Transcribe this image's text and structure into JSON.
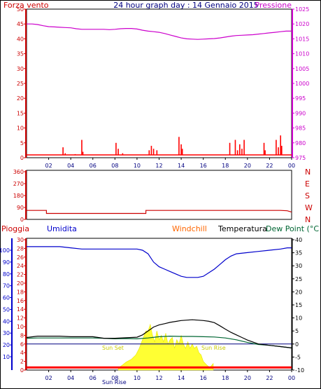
{
  "page": {
    "title": "24 hour graph day : 14 Gennaio 2015"
  },
  "x_ticks": [
    "02",
    "04",
    "06",
    "08",
    "10",
    "12",
    "14",
    "16",
    "18",
    "20",
    "22",
    "00"
  ],
  "chart_data": [
    {
      "type": "line",
      "title": "24 hour graph day : 14 Gennaio 2015",
      "left_axis_label": "Forza vento",
      "right_axis_label": "Pressione",
      "left_ticks": [
        "0",
        "5",
        "10",
        "15",
        "20",
        "25",
        "30",
        "35",
        "40",
        "45",
        "50"
      ],
      "right_ticks": [
        "975",
        "980",
        "985",
        "990",
        "995",
        "1000",
        "1005",
        "1010",
        "1015",
        "1020",
        "1025"
      ],
      "left_ylim": [
        0,
        50
      ],
      "right_ylim": [
        975,
        1025
      ],
      "xlim": [
        0,
        24
      ],
      "series": [
        {
          "name": "Pressione",
          "axis": "right",
          "color": "#cc00cc",
          "x": [
            0,
            0.5,
            1,
            1.5,
            2,
            2.5,
            3,
            3.5,
            4,
            4.5,
            5,
            5.5,
            6,
            6.5,
            7,
            7.5,
            8,
            8.5,
            9,
            9.5,
            10,
            10.5,
            11,
            11.5,
            12,
            12.5,
            13,
            13.5,
            14,
            14.5,
            15,
            15.5,
            16,
            16.5,
            17,
            17.5,
            18,
            18.5,
            19,
            19.5,
            20,
            20.5,
            21,
            21.5,
            22,
            22.5,
            23,
            23.5,
            24
          ],
          "values": [
            1020,
            1020,
            1019.8,
            1019.4,
            1019.1,
            1019,
            1018.9,
            1018.8,
            1018.7,
            1018.4,
            1018.2,
            1018.2,
            1018.2,
            1018.2,
            1018.2,
            1018.1,
            1018.2,
            1018.4,
            1018.5,
            1018.5,
            1018.3,
            1017.9,
            1017.6,
            1017.4,
            1017.2,
            1016.8,
            1016.3,
            1015.8,
            1015.3,
            1015,
            1014.9,
            1014.8,
            1014.9,
            1015,
            1015.1,
            1015.3,
            1015.6,
            1015.9,
            1016.1,
            1016.2,
            1016.3,
            1016.4,
            1016.6,
            1016.8,
            1017,
            1017.2,
            1017.4,
            1017.6,
            1017.6
          ]
        },
        {
          "name": "Forza vento",
          "axis": "left",
          "color": "#ff0000",
          "x": [
            3.3,
            3.5,
            4.4,
            5.0,
            5.1,
            8.1,
            8.3,
            8.7,
            11.1,
            11.3,
            11.5,
            11.8,
            13.8,
            14.0,
            14.1,
            18.4,
            18.9,
            19.1,
            19.3,
            19.5,
            19.7,
            21.5,
            21.6,
            22.6,
            22.8,
            23.0,
            23.1
          ],
          "values": [
            3.5,
            1.5,
            1.2,
            6,
            2,
            5,
            3,
            1.5,
            2.5,
            4,
            3,
            2.5,
            7,
            4.5,
            3,
            5,
            6,
            2.5,
            4.5,
            3,
            6,
            5,
            2.5,
            6,
            3.5,
            7.5,
            4
          ]
        }
      ]
    },
    {
      "type": "line",
      "left_ticks": [
        "0",
        "90",
        "180",
        "270",
        "360"
      ],
      "right_labels": [
        "N",
        "W",
        "S",
        "E",
        "N"
      ],
      "ylim": [
        0,
        360
      ],
      "xlim": [
        0,
        24
      ],
      "series": [
        {
          "name": "Direzione vento",
          "color": "#cc0000",
          "x": [
            0,
            1.8,
            1.8,
            10.8,
            10.8,
            23.0,
            23.6,
            24
          ],
          "values": [
            68,
            68,
            45,
            45,
            68,
            68,
            65,
            55
          ]
        }
      ]
    },
    {
      "type": "line",
      "labels": {
        "rain": "Pioggia",
        "humidity": "Umidita",
        "windchill": "Windchill",
        "temperature": "Temperatura",
        "dewpoint": "Dew Point (°C"
      },
      "rain_ticks": [
        "0",
        "2",
        "4",
        "6",
        "8",
        "10",
        "12",
        "14",
        "16",
        "18",
        "20",
        "22",
        "24",
        "26",
        "28",
        "30"
      ],
      "humidity_ticks": [
        "10",
        "20",
        "30",
        "40",
        "50",
        "60",
        "70",
        "80",
        "90",
        "100"
      ],
      "temp_ticks": [
        "-10",
        "-5",
        "0",
        "5",
        "10",
        "15",
        "20",
        "25",
        "30",
        "35",
        "40"
      ],
      "temp_ylim": [
        -10,
        40
      ],
      "humidity_ylim": [
        0,
        100
      ],
      "rain_ylim": [
        0,
        30
      ],
      "xlim": [
        0,
        24
      ],
      "annotations": [
        "Sun Set",
        "Sun Rise",
        "Sun Rise",
        "Sun Set"
      ],
      "series": [
        {
          "name": "Umidita",
          "axis": "humidity",
          "color": "#0000cc",
          "x": [
            0,
            1,
            2,
            3,
            4,
            5,
            6,
            7,
            8,
            9,
            10,
            10.5,
            11,
            11.5,
            12,
            12.5,
            13,
            13.5,
            14,
            14.5,
            15,
            15.5,
            16,
            16.5,
            17,
            17.5,
            18,
            18.5,
            19,
            20,
            21,
            22,
            23,
            23.6,
            24
          ],
          "values": [
            93,
            93,
            93,
            93,
            92,
            91,
            91,
            91,
            91,
            91,
            91,
            90,
            87,
            80,
            76,
            74,
            72,
            70,
            68,
            67,
            67,
            67,
            68,
            71,
            74,
            78,
            82,
            85,
            87,
            88,
            89,
            90,
            91,
            92,
            92
          ]
        },
        {
          "name": "Temperatura",
          "axis": "temp",
          "color": "#000000",
          "x": [
            0,
            1,
            2,
            3,
            4,
            5,
            6,
            7,
            8,
            9,
            10,
            10.5,
            11,
            11.5,
            12,
            12.5,
            13,
            14,
            15,
            16,
            16.5,
            17,
            17.5,
            18,
            18.5,
            19,
            19.5,
            20,
            21,
            22,
            23,
            24
          ],
          "values": [
            2.5,
            3,
            3,
            3,
            2.8,
            2.8,
            2.8,
            2.2,
            2.2,
            2.4,
            2.6,
            3.5,
            5,
            6.5,
            7.3,
            7.8,
            8.3,
            9,
            9.3,
            9,
            8.7,
            8.2,
            7,
            5.7,
            4.5,
            3.5,
            2.5,
            1.5,
            0,
            -0.5,
            -1,
            -1.5
          ]
        },
        {
          "name": "Dew Point",
          "axis": "temp",
          "color": "#006633",
          "x": [
            0,
            1,
            2,
            3,
            4,
            5,
            6,
            7,
            8,
            9,
            10,
            11,
            12,
            13,
            14,
            15,
            16,
            17,
            18,
            19,
            20,
            21,
            22,
            23,
            24
          ],
          "values": [
            2.2,
            2.3,
            2.3,
            2.3,
            2.3,
            2.3,
            2.3,
            2.2,
            2.0,
            2.1,
            2.0,
            2.3,
            2.8,
            3,
            2.9,
            2.9,
            2.8,
            2.7,
            2.3,
            1.6,
            0.6,
            -0.2,
            -0.5,
            -1,
            -1.5
          ]
        },
        {
          "name": "Pioggia",
          "axis": "rain",
          "color": "#ff0000",
          "x": [
            0,
            24
          ],
          "values": [
            0.6,
            0.6
          ]
        },
        {
          "name": "Radiazione solare",
          "axis": "rain",
          "color": "#ffff00",
          "x": [
            8.3,
            8.6,
            9,
            9.5,
            9.9,
            10.2,
            10.5,
            10.8,
            11.0,
            11.2,
            11.4,
            11.6,
            11.8,
            12.0,
            12.2,
            12.4,
            12.6,
            12.8,
            13.0,
            13.2,
            13.4,
            13.6,
            13.8,
            14.0,
            14.2,
            14.4,
            14.6,
            14.8,
            15.0,
            15.2,
            15.4,
            15.6,
            15.8,
            16.0,
            16.3,
            16.6,
            16.9
          ],
          "values": [
            0.5,
            1,
            1.8,
            2.5,
            3.5,
            5,
            7,
            9,
            9,
            10.5,
            8,
            6.5,
            9,
            7,
            8,
            6.5,
            8.5,
            6,
            7,
            7.5,
            5,
            7,
            6,
            8,
            6,
            5,
            6.5,
            5,
            6,
            5,
            5.5,
            4,
            3.5,
            2,
            1.2,
            0.6,
            1.5
          ]
        }
      ]
    }
  ]
}
